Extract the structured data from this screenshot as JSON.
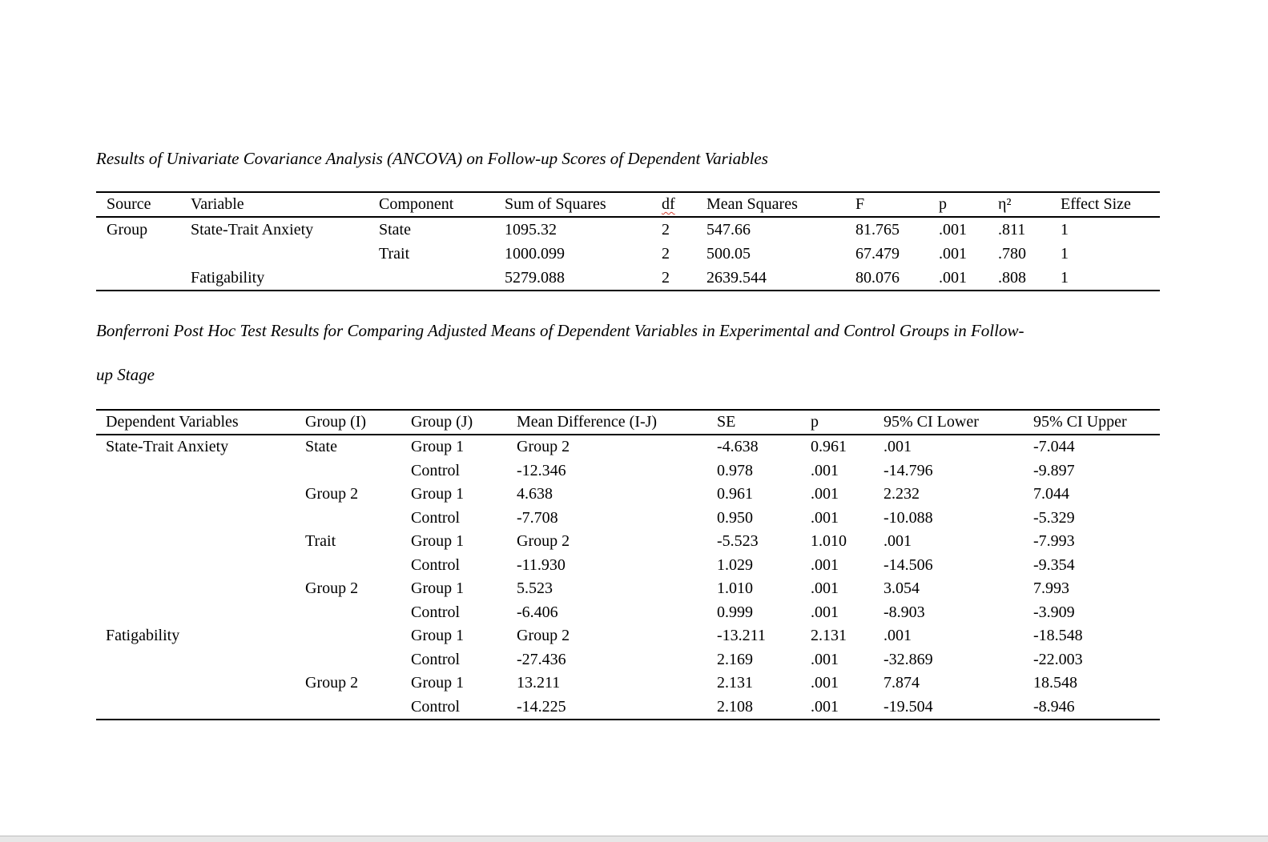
{
  "page": {
    "background": "#ffffff",
    "bottom_bar_fill": "#e7e7e7",
    "bottom_bar_line": "#bcbcbc",
    "text_color": "#000000",
    "spellcheck_underline_color": "#d23f31"
  },
  "table1": {
    "title": "Results of Univariate Covariance Analysis (ANCOVA) on Follow-up Scores of Dependent Variables",
    "columns": [
      "Source",
      "Variable",
      "Component",
      "Sum of Squares",
      "df",
      "Mean Squares",
      "F",
      "p",
      "η²",
      "Effect Size"
    ],
    "spellchecked_column_indices": [
      4
    ],
    "rows": [
      [
        "Group",
        "State-Trait Anxiety",
        "State",
        "1095.32",
        "2",
        "547.66",
        "81.765",
        ".001",
        ".811",
        "1"
      ],
      [
        "",
        "",
        "Trait",
        "1000.099",
        "2",
        "500.05",
        "67.479",
        ".001",
        ".780",
        "1"
      ],
      [
        "",
        "Fatigability",
        "",
        "5279.088",
        "2",
        "2639.544",
        "80.076",
        ".001",
        ".808",
        "1"
      ]
    ]
  },
  "table2": {
    "title_line1": "Bonferroni Post Hoc Test Results for Comparing Adjusted Means of Dependent Variables in Experimental and Control Groups in Follow-",
    "title_line2": "up Stage",
    "columns": [
      "Dependent Variables",
      "Group (I)",
      "Group (J)",
      "Mean Difference (I-J)",
      "SE",
      "p",
      "95% CI Lower",
      "95% CI Upper"
    ],
    "spellchecked_column_indices": [],
    "rows": [
      [
        "State-Trait Anxiety",
        "State",
        "Group 1",
        "Group 2",
        "-4.638",
        "0.961",
        ".001",
        "-7.044"
      ],
      [
        "",
        "",
        "Control",
        "-12.346",
        "0.978",
        ".001",
        "-14.796",
        "-9.897"
      ],
      [
        "",
        "Group 2",
        "Group 1",
        "4.638",
        "0.961",
        ".001",
        "2.232",
        "7.044"
      ],
      [
        "",
        "",
        "Control",
        "-7.708",
        "0.950",
        ".001",
        "-10.088",
        "-5.329"
      ],
      [
        "",
        "Trait",
        "Group 1",
        "Group 2",
        "-5.523",
        "1.010",
        ".001",
        "-7.993"
      ],
      [
        "",
        "",
        "Control",
        "-11.930",
        "1.029",
        ".001",
        "-14.506",
        "-9.354"
      ],
      [
        "",
        "Group 2",
        "Group 1",
        "5.523",
        "1.010",
        ".001",
        "3.054",
        "7.993"
      ],
      [
        "",
        "",
        "Control",
        "-6.406",
        "0.999",
        ".001",
        "-8.903",
        "-3.909"
      ],
      [
        "Fatigability",
        "",
        "Group 1",
        "Group 2",
        "-13.211",
        "2.131",
        ".001",
        "-18.548"
      ],
      [
        "",
        "",
        "Control",
        "-27.436",
        "2.169",
        ".001",
        "-32.869",
        "-22.003"
      ],
      [
        "",
        "Group 2",
        "Group 1",
        "13.211",
        "2.131",
        ".001",
        "7.874",
        "18.548"
      ],
      [
        "",
        "",
        "Control",
        "-14.225",
        "2.108",
        ".001",
        "-19.504",
        "-8.946"
      ]
    ]
  }
}
